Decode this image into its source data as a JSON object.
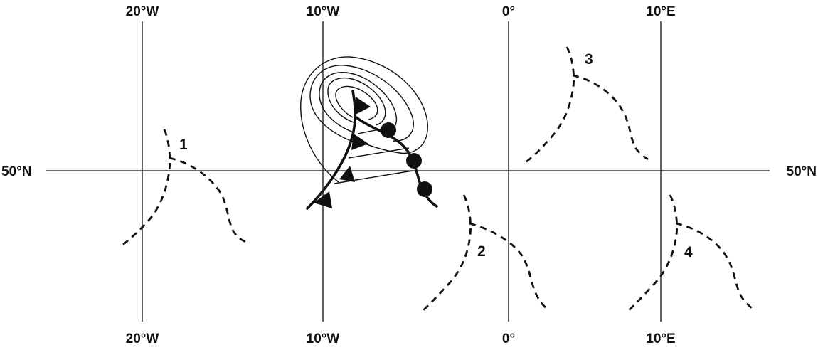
{
  "colors": {
    "ink": "#111111",
    "background": "#ffffff"
  },
  "longitudes": [
    "20°W",
    "10°W",
    "0°",
    "10°E"
  ],
  "latitude": "50°N",
  "depression": {
    "front_symbols": [
      "warm-front-icon",
      "cold-front-icon",
      "occluded-front-icon"
    ],
    "isobar_count": 5
  },
  "front_sketches": [
    {
      "label": "1"
    },
    {
      "label": "2"
    },
    {
      "label": "3"
    },
    {
      "label": "4"
    }
  ]
}
